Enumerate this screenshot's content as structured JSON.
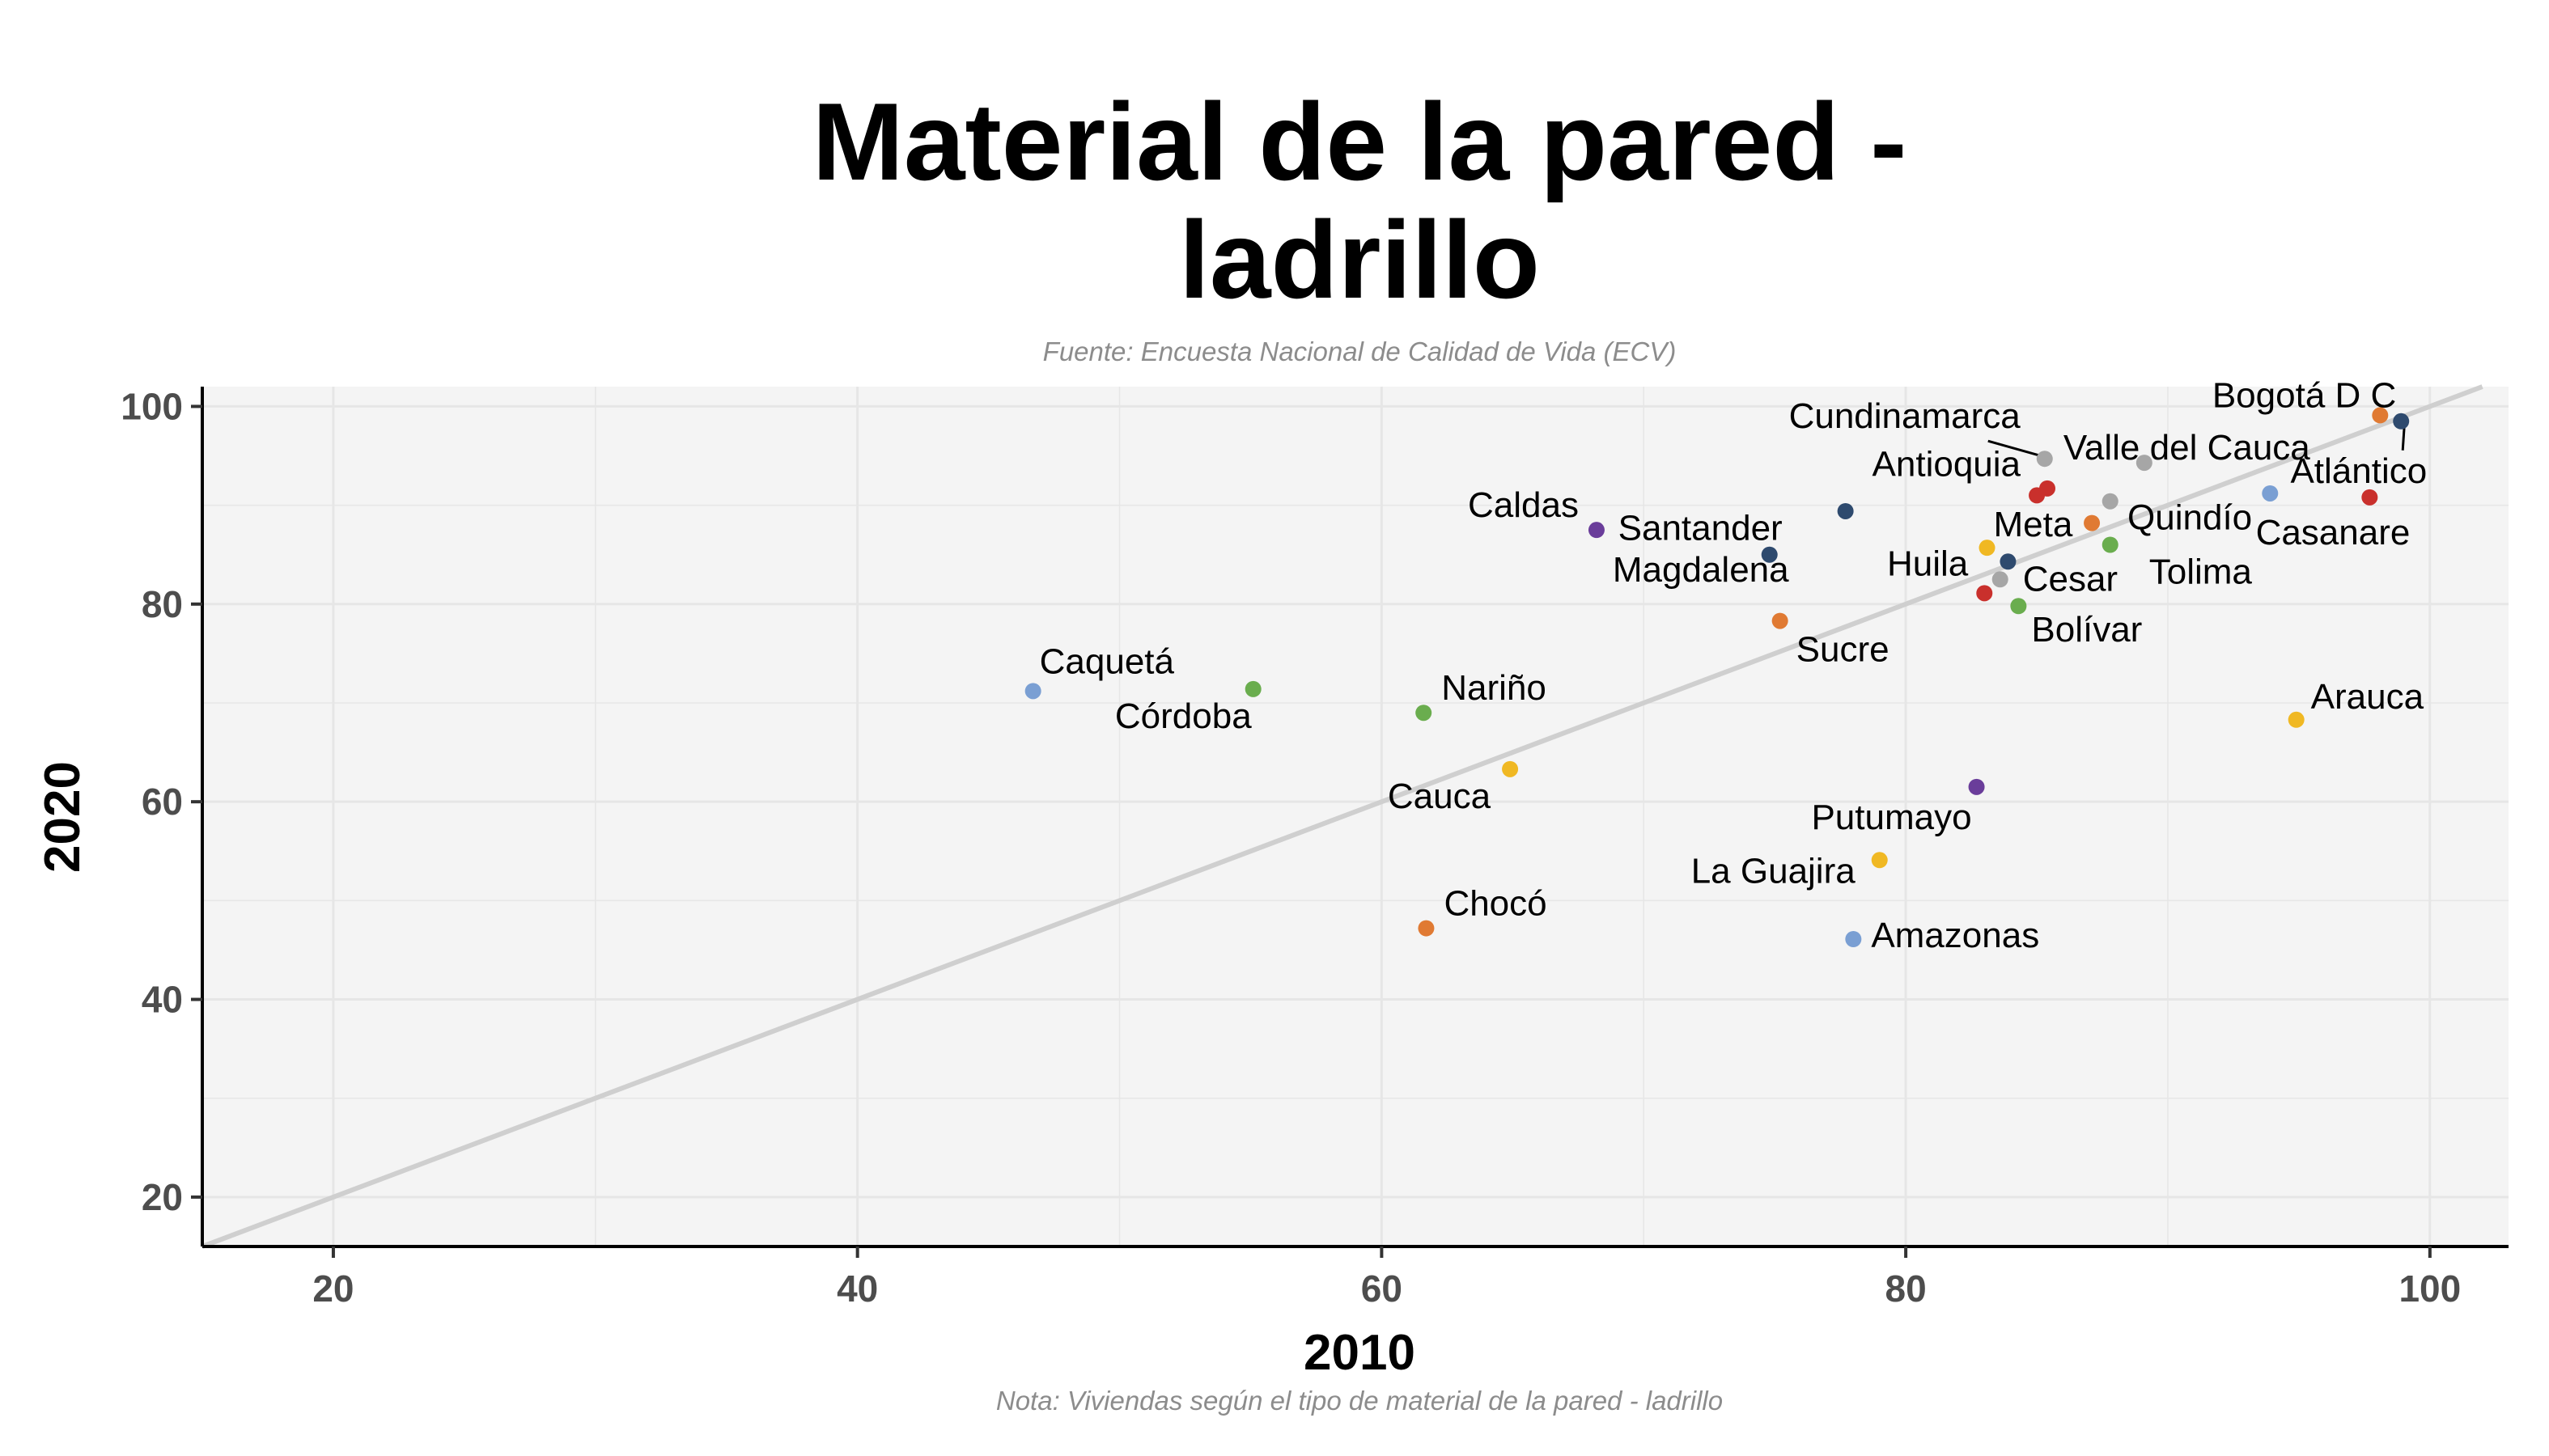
{
  "chart_data": {
    "type": "scatter",
    "title_lines": [
      "Material de la pared -",
      "ladrillo"
    ],
    "subtitle": "Fuente: Encuesta Nacional de Calidad de Vida (ECV)",
    "caption": "Nota: Viviendas según el tipo de material de la pared - ladrillo",
    "xlabel": "2010",
    "ylabel": "2020",
    "xlim": [
      15,
      103
    ],
    "ylim": [
      15,
      102
    ],
    "xticks": [
      20,
      40,
      60,
      80,
      100
    ],
    "yticks": [
      20,
      40,
      60,
      80,
      100
    ],
    "grid": true,
    "reference_line": "y = x",
    "colors": {
      "panel_background": "#f4f4f4",
      "grid": "#e6e6e6",
      "reference_line": "#cfcfcf",
      "blue": "#7a9fd3",
      "green": "#6aad4e",
      "purple": "#6a3d9a",
      "orange": "#e07a33",
      "red": "#c9302c",
      "yellow": "#f0b823",
      "navy": "#2e4a6e",
      "gray": "#a6a6a6"
    },
    "points": [
      {
        "name": "Caquetá",
        "x": 46.7,
        "y": 71.2,
        "color": "#7a9fd3"
      },
      {
        "name": "Córdoba",
        "x": 55.1,
        "y": 71.4,
        "color": "#6aad4e"
      },
      {
        "name": "Nariño",
        "x": 61.6,
        "y": 69.0,
        "color": "#6aad4e"
      },
      {
        "name": "Chocó",
        "x": 61.7,
        "y": 47.2,
        "color": "#e07a33"
      },
      {
        "name": "Cauca",
        "x": 64.9,
        "y": 63.3,
        "color": "#f0b823"
      },
      {
        "name": "Caldas",
        "x": 68.2,
        "y": 87.5,
        "color": "#6a3d9a"
      },
      {
        "name": "Santander",
        "x": 74.8,
        "y": 85.0,
        "color": "#2e4a6e"
      },
      {
        "name": "Sucre",
        "x": 75.2,
        "y": 78.3,
        "color": "#e07a33"
      },
      {
        "name": "Magdalena",
        "x": 77.7,
        "y": 89.4,
        "color": "#2e4a6e"
      },
      {
        "name": "Amazonas",
        "x": 78.0,
        "y": 46.1,
        "color": "#7a9fd3"
      },
      {
        "name": "La Guajira",
        "x": 79.0,
        "y": 54.1,
        "color": "#f0b823"
      },
      {
        "name": "Putumayo",
        "x": 82.7,
        "y": 61.5,
        "color": "#6a3d9a"
      },
      {
        "name": "Huila",
        "x": 83.0,
        "y": 81.1,
        "color": "#c9302c"
      },
      {
        "name": "Meta",
        "x": 83.1,
        "y": 85.7,
        "color": "#f0b823"
      },
      {
        "name": "Cesar",
        "x": 83.6,
        "y": 82.5,
        "color": "#a6a6a6"
      },
      {
        "name": "",
        "x": 83.9,
        "y": 84.3,
        "color": "#2e4a6e"
      },
      {
        "name": "Bolívar",
        "x": 84.3,
        "y": 79.8,
        "color": "#6aad4e"
      },
      {
        "name": "Antioquia",
        "x": 85.0,
        "y": 91.0,
        "color": "#c9302c"
      },
      {
        "name": "",
        "x": 85.4,
        "y": 91.7,
        "color": "#c9302c"
      },
      {
        "name": "Cundinamarca",
        "x": 85.3,
        "y": 94.7,
        "color": "#a6a6a6"
      },
      {
        "name": "Quindío",
        "x": 87.1,
        "y": 88.2,
        "color": "#e07a33"
      },
      {
        "name": "Tolima",
        "x": 87.8,
        "y": 86.0,
        "color": "#6aad4e"
      },
      {
        "name": "",
        "x": 87.8,
        "y": 90.4,
        "color": "#a6a6a6"
      },
      {
        "name": "Valle del Cauca",
        "x": 89.1,
        "y": 94.3,
        "color": "#a6a6a6"
      },
      {
        "name": "",
        "x": 93.9,
        "y": 91.2,
        "color": "#7a9fd3"
      },
      {
        "name": "Arauca",
        "x": 94.9,
        "y": 68.3,
        "color": "#f0b823"
      },
      {
        "name": "Casanare",
        "x": 97.7,
        "y": 90.8,
        "color": "#c9302c"
      },
      {
        "name": "Bogotá D C",
        "x": 98.1,
        "y": 99.1,
        "color": "#e07a33"
      },
      {
        "name": "Atlántico",
        "x": 98.9,
        "y": 98.5,
        "color": "#2e4a6e"
      }
    ]
  }
}
